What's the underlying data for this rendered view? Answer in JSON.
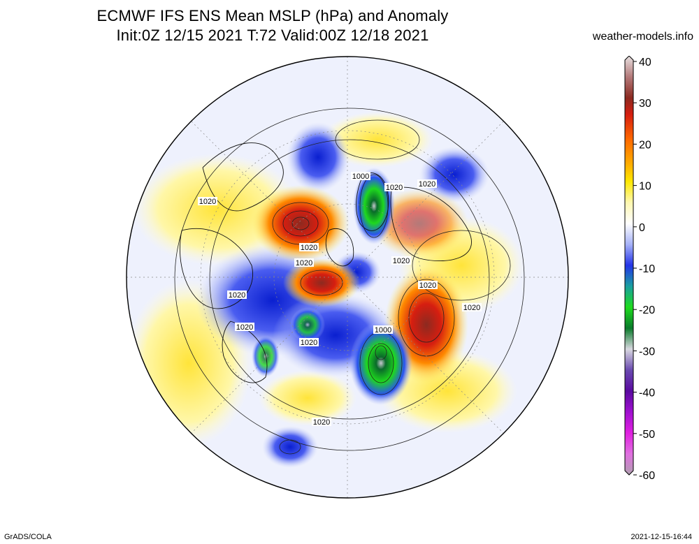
{
  "title_line1": "ECMWF IFS ENS Mean MSLP (hPa) and Anomaly",
  "title_line2": "Init:0Z 12/15 2021  T:72 Valid:00Z 12/18 2021",
  "site": "weather-models.info",
  "footer_left": "GrADS/COLA",
  "footer_right": "2021-12-15-16:44",
  "colorbar": {
    "ticks": [
      "40",
      "30",
      "20",
      "10",
      "0",
      "-10",
      "-20",
      "-30",
      "-40",
      "-50",
      "-60"
    ]
  },
  "contour_labels": [
    {
      "text": "1000",
      "name": "label-1000-arctic"
    },
    {
      "text": "1020",
      "name": "label-1020-greenland"
    },
    {
      "text": "1020",
      "name": "label-1020-canada"
    },
    {
      "text": "1020",
      "name": "label-1020-west"
    },
    {
      "text": "1020",
      "name": "label-1020-scandinavia"
    },
    {
      "text": "1020",
      "name": "label-1020-scandinavia2"
    },
    {
      "text": "1020",
      "name": "label-1020-centralasia"
    },
    {
      "text": "1020",
      "name": "label-1020-usa"
    },
    {
      "text": "1020",
      "name": "label-1020-atlantic"
    },
    {
      "text": "1020",
      "name": "label-1020-pacific-east"
    },
    {
      "text": "1020",
      "name": "label-1020-asia-south"
    },
    {
      "text": "1020",
      "name": "label-1020-siberia"
    },
    {
      "text": "1000",
      "name": "label-1000-pacific"
    },
    {
      "text": "1020",
      "name": "label-1020-southasia"
    }
  ]
}
